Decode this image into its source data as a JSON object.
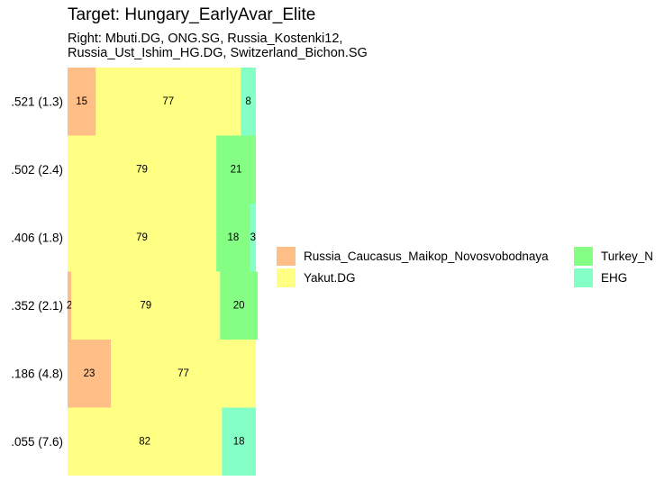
{
  "title": "Target: Hungary_EarlyAvar_Elite",
  "subtitle_lines": [
    "Right: Mbuti.DG, ONG.SG, Russia_Kostenki12,",
    "Russia_Ust_Ishim_HG.DG, Switzerland_Bichon.SG"
  ],
  "chart_data": {
    "type": "bar",
    "orientation": "horizontal-stacked",
    "title": "Target: Hungary_EarlyAvar_Elite",
    "subtitle": "Right: Mbuti.DG, ONG.SG, Russia_Kostenki12, Russia_Ust_Ishim_HG.DG, Switzerland_Bichon.SG",
    "xlim": [
      0,
      100
    ],
    "categories": [
      ".521 (1.3)",
      ".502 (2.4)",
      ".406 (1.8)",
      ".352 (2.1)",
      ".186 (4.8)",
      ".055 (7.6)"
    ],
    "series": [
      {
        "name": "Russia_Caucasus_Maikop_Novosvobodnaya",
        "color": "#FFBE86",
        "values": [
          15,
          0,
          0,
          2,
          23,
          0
        ]
      },
      {
        "name": "Yakut.DG",
        "color": "#FFFF84",
        "values": [
          77,
          79,
          79,
          79,
          77,
          82
        ]
      },
      {
        "name": "Turkey_N",
        "color": "#84FF84",
        "values": [
          0,
          21,
          18,
          20,
          0,
          0
        ]
      },
      {
        "name": "EHG",
        "color": "#84FFC6",
        "values": [
          8,
          0,
          3,
          0,
          0,
          18
        ]
      }
    ],
    "legend_position": "right",
    "grid": false
  }
}
